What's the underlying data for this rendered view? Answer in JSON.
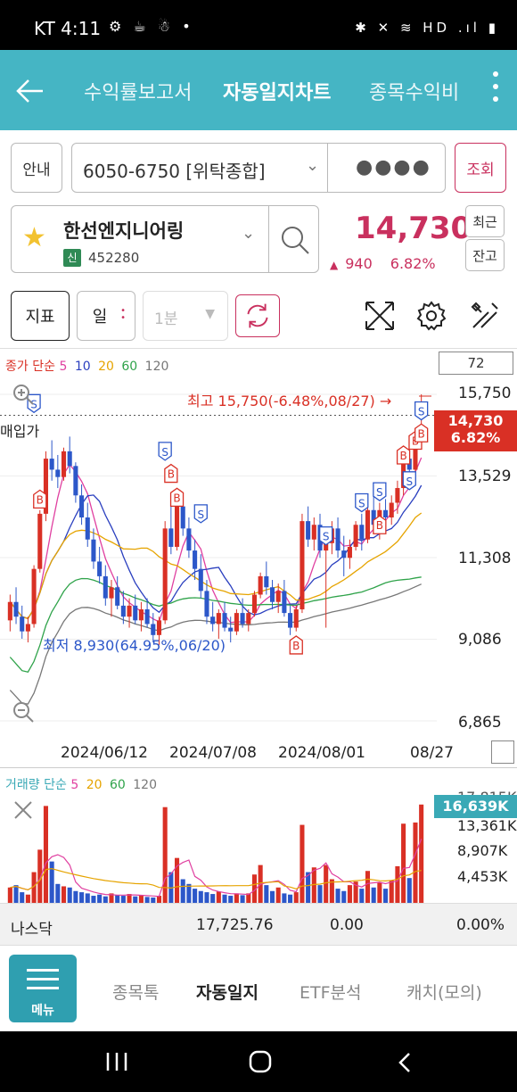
{
  "status_bar": {
    "carrier_time": "KT 4:11",
    "icons": "⚙ ☕ ☃ •",
    "right_icons": "✱ ✕ ≋ HD .ıl ▮"
  },
  "nav": {
    "tabs": [
      "수익률보고서",
      "자동일지차트",
      "종목수익비"
    ],
    "active_index": 1
  },
  "account": {
    "guide_label": "안내",
    "account_text": "6050-6750 [위탁종합]",
    "password_mask": "●●●●",
    "query_label": "조회"
  },
  "stock": {
    "name": "한선엔지니어링",
    "market_badge": "신",
    "code": "452280",
    "price": "14,730",
    "change": "940",
    "change_pct": "6.82%",
    "recent_label": "최근",
    "balance_label": "잔고"
  },
  "toolbar": {
    "indicator_label": "지표",
    "period_label": "일",
    "minute_label": "1분"
  },
  "chart": {
    "legend_title": "종가 단순",
    "ma_periods": [
      "5",
      "10",
      "20",
      "60",
      "120"
    ],
    "ma_colors": [
      "#e040a0",
      "#2a3fbf",
      "#e6a400",
      "#2fa34a",
      "#777777"
    ],
    "period_count": "72",
    "y_labels": [
      "15,750",
      "13,529",
      "11,308",
      "9,086",
      "6,865"
    ],
    "current_price": "14,730",
    "current_pct": "6.82%",
    "high_text": "최고 15,750(-6.48%,08/27) →",
    "low_text": "최저 8,930(64.95%,06/20)",
    "buy_price_label": "매입가",
    "x_labels": [
      "2024/06/12",
      "2024/07/08",
      "2024/08/01",
      "08/27"
    ],
    "up_color": "#d93025",
    "down_color": "#2c57c9"
  },
  "chart_data": {
    "type": "candlestick",
    "ylim": [
      6865,
      15750
    ],
    "series": [
      {
        "name": "price",
        "values": [
          [
            9600,
            10300,
            9300,
            10100
          ],
          [
            10100,
            10500,
            9500,
            9700
          ],
          [
            9700,
            10000,
            9100,
            9300
          ],
          [
            9300,
            9700,
            9000,
            9500
          ],
          [
            9500,
            11100,
            9400,
            11000
          ],
          [
            11000,
            12600,
            10900,
            12500
          ],
          [
            12500,
            14200,
            12300,
            14000
          ],
          [
            14000,
            14500,
            13400,
            13700
          ],
          [
            13700,
            14100,
            13200,
            13500
          ],
          [
            13500,
            14300,
            13400,
            14200
          ],
          [
            14200,
            14600,
            13600,
            13800
          ],
          [
            13800,
            13900,
            12800,
            13000
          ],
          [
            13000,
            13300,
            12200,
            12400
          ],
          [
            12400,
            12800,
            11600,
            11800
          ],
          [
            11800,
            12100,
            11000,
            11200
          ],
          [
            11200,
            11600,
            10600,
            10800
          ],
          [
            10800,
            11100,
            10000,
            10200
          ],
          [
            10200,
            10700,
            9700,
            10500
          ],
          [
            10500,
            10800,
            9900,
            10000
          ],
          [
            10000,
            10400,
            9500,
            9700
          ],
          [
            9700,
            10200,
            9400,
            10000
          ],
          [
            10000,
            10300,
            9500,
            9600
          ],
          [
            9600,
            10100,
            9300,
            9900
          ],
          [
            9900,
            10200,
            9400,
            9500
          ],
          [
            9500,
            9800,
            9000,
            9200
          ],
          [
            9200,
            9700,
            8930,
            9600
          ],
          [
            9600,
            12300,
            9500,
            12100
          ],
          [
            12100,
            12700,
            11400,
            11600
          ],
          [
            11600,
            12900,
            11500,
            12700
          ],
          [
            12700,
            13000,
            11900,
            12100
          ],
          [
            12100,
            12400,
            11300,
            11500
          ],
          [
            11500,
            11800,
            10700,
            11000
          ],
          [
            11000,
            11400,
            10200,
            10400
          ],
          [
            10400,
            10700,
            9500,
            9700
          ],
          [
            9700,
            10100,
            9300,
            9500
          ],
          [
            9500,
            9900,
            9100,
            9800
          ],
          [
            9800,
            10100,
            9300,
            9400
          ],
          [
            9400,
            9700,
            9000,
            9300
          ],
          [
            9300,
            9900,
            9200,
            9800
          ],
          [
            9800,
            10200,
            9400,
            9500
          ],
          [
            9500,
            9900,
            9300,
            9800
          ],
          [
            9800,
            10400,
            9700,
            10300
          ],
          [
            10300,
            10900,
            10200,
            10800
          ],
          [
            10800,
            11200,
            10300,
            10500
          ],
          [
            10500,
            10700,
            9900,
            10100
          ],
          [
            10100,
            10600,
            9800,
            10400
          ],
          [
            10400,
            10700,
            9700,
            9800
          ],
          [
            9800,
            10000,
            9200,
            9400
          ],
          [
            9400,
            10000,
            9300,
            9900
          ],
          [
            9900,
            12500,
            9800,
            12300
          ],
          [
            12300,
            12700,
            11600,
            11800
          ],
          [
            11800,
            12400,
            11500,
            12200
          ],
          [
            12200,
            12500,
            11300,
            11500
          ],
          [
            11500,
            12000,
            9400,
            11700
          ],
          [
            11700,
            12300,
            11400,
            12100
          ],
          [
            12100,
            12400,
            11300,
            11500
          ],
          [
            11500,
            11900,
            10800,
            11300
          ],
          [
            11300,
            11800,
            11000,
            11600
          ],
          [
            11600,
            12300,
            11500,
            12200
          ],
          [
            12200,
            12500,
            11500,
            11800
          ],
          [
            11800,
            12800,
            11700,
            12600
          ],
          [
            12600,
            13100,
            12000,
            12200
          ],
          [
            12200,
            12800,
            11800,
            12600
          ],
          [
            12600,
            12900,
            12000,
            12400
          ],
          [
            12400,
            13000,
            12200,
            12800
          ],
          [
            12800,
            13400,
            12500,
            13200
          ],
          [
            13200,
            14200,
            13000,
            14000
          ],
          [
            14000,
            14400,
            13600,
            13700
          ],
          [
            13700,
            14700,
            13600,
            14500
          ],
          [
            14500,
            15750,
            14300,
            14730
          ]
        ]
      }
    ],
    "volume": {
      "ylim": [
        0,
        17815
      ],
      "values": [
        2600,
        3000,
        1800,
        1400,
        5200,
        9000,
        16400,
        7000,
        3200,
        2800,
        2600,
        2000,
        1800,
        1600,
        1200,
        1400,
        1100,
        1600,
        1300,
        1200,
        1500,
        1100,
        1300,
        1000,
        900,
        1200,
        16200,
        5200,
        7600,
        4000,
        3200,
        2400,
        2000,
        1800,
        1500,
        1900,
        1400,
        1200,
        1600,
        1300,
        1600,
        4800,
        6400,
        3000,
        2000,
        2600,
        1600,
        1400,
        1800,
        13200,
        5200,
        6000,
        3000,
        6400,
        4000,
        2400,
        2000,
        3000,
        3600,
        2400,
        5400,
        2600,
        3400,
        2400,
        3800,
        6200,
        13400,
        4200,
        13600,
        16639
      ]
    }
  },
  "volume_chart": {
    "legend_title": "거래량 단순",
    "ma_periods": [
      "5",
      "20",
      "60",
      "120"
    ],
    "ma_colors": [
      "#e040a0",
      "#e6a400",
      "#2fa34a",
      "#777777"
    ],
    "current_volume": "16,639K",
    "y_labels": [
      "17,815K",
      "13,361K",
      "8,907K",
      "4,453K"
    ]
  },
  "index_bar": {
    "name": "나스닥",
    "value": "17,725.76",
    "change": "0.00",
    "change_pct": "0.00%"
  },
  "bottom_tabs": {
    "menu_label": "메뉴",
    "tabs": [
      "종목톡",
      "자동일지",
      "ETF분석",
      "캐치(모의)"
    ],
    "active_index": 1
  }
}
